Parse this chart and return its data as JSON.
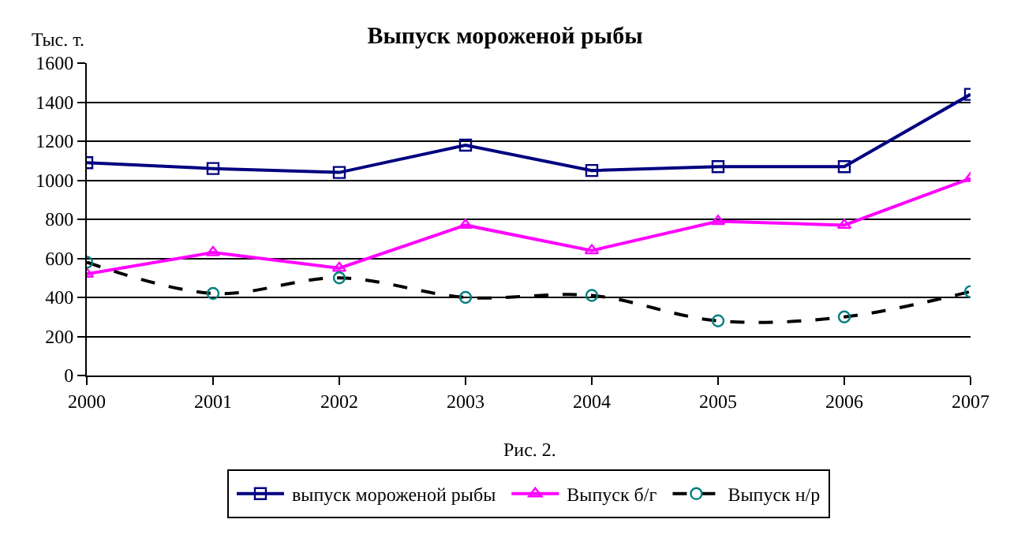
{
  "chart_data": {
    "type": "line",
    "title": "Выпуск мороженой рыбы",
    "ylabel": "Тыс. т.",
    "x": [
      2000,
      2001,
      2002,
      2003,
      2004,
      2005,
      2006,
      2007
    ],
    "xlim": [
      2000,
      2007
    ],
    "xticks": [
      2000,
      2001,
      2002,
      2003,
      2004,
      2005,
      2006,
      2007
    ],
    "ylim": [
      0,
      1600
    ],
    "yticks": [
      0,
      200,
      400,
      600,
      800,
      1000,
      1200,
      1400,
      1600
    ],
    "grid": "y",
    "legend": "bottom",
    "annotations": [
      "Рис. 2."
    ],
    "series": [
      {
        "name": "выпуск мороженой рыбы",
        "color": "#000080",
        "marker": "square",
        "line_style": "solid",
        "values": [
          1090,
          1060,
          1040,
          1180,
          1050,
          1070,
          1070,
          1440
        ]
      },
      {
        "name": "Выпуск б/г",
        "color": "#ff00ff",
        "marker": "triangle",
        "line_style": "solid",
        "values": [
          520,
          630,
          550,
          770,
          640,
          790,
          770,
          1010
        ]
      },
      {
        "name": "Выпуск н/р",
        "color": "#000000",
        "marker": "circle",
        "line_style": "dashed",
        "values": [
          580,
          420,
          500,
          400,
          410,
          280,
          300,
          430
        ]
      }
    ]
  }
}
